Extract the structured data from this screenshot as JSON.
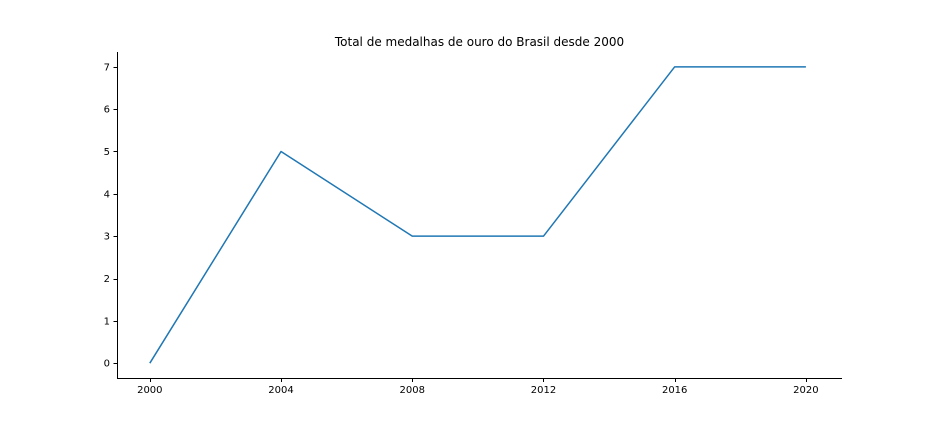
{
  "chart_data": {
    "type": "line",
    "title": "Total de medalhas de ouro do Brasil desde 2000",
    "xlabel": "",
    "ylabel": "",
    "x": [
      2000,
      2004,
      2008,
      2012,
      2016,
      2020
    ],
    "series": [
      {
        "values": [
          0,
          5,
          3,
          3,
          7,
          7
        ],
        "color": "#1f77b4"
      }
    ],
    "xticks": [
      2000,
      2004,
      2008,
      2012,
      2016,
      2020
    ],
    "yticks": [
      0,
      1,
      2,
      3,
      4,
      5,
      6,
      7
    ],
    "xlim": [
      1999,
      2021.1
    ],
    "ylim": [
      -0.35,
      7.35
    ],
    "grid": false,
    "legend": "none",
    "spines": [
      "left",
      "bottom"
    ]
  }
}
